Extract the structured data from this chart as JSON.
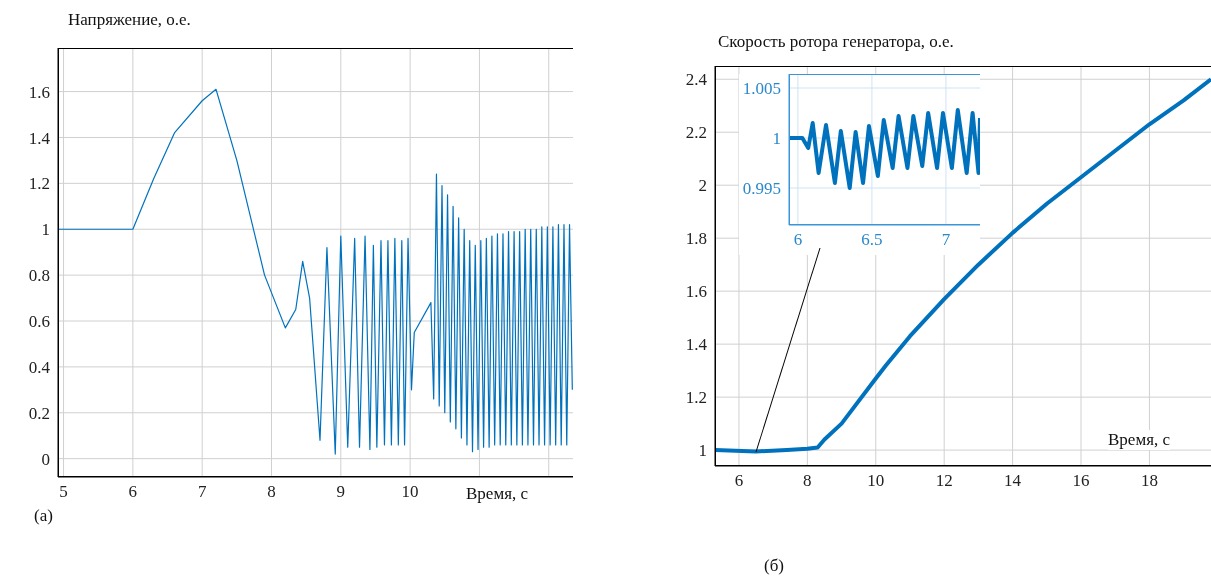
{
  "chart_data": [
    {
      "type": "line",
      "ylabel": "Напряжение, о.е.",
      "xlabel": "Время, с",
      "annotations": [
        "(а)"
      ],
      "color": "#0072bd",
      "grid": true,
      "xlim": [
        4.92,
        12.35
      ],
      "ylim": [
        -0.08,
        1.79
      ],
      "xticks": [
        5,
        6,
        7,
        8,
        9,
        10,
        {
          "value": 11,
          "label": null
        },
        {
          "value": 12,
          "label": null
        }
      ],
      "yticks": [
        0,
        0.2,
        0.4,
        0.6,
        0.8,
        1,
        1.2,
        1.4,
        1.6
      ],
      "x": [
        4.92,
        6.0,
        6.3,
        6.6,
        7.0,
        7.2,
        7.5,
        7.9,
        8.2,
        8.35,
        8.45,
        8.55,
        8.7,
        8.8,
        8.92,
        9.0,
        9.1,
        9.2,
        9.27,
        9.35,
        9.42,
        9.47,
        9.52,
        9.58,
        9.63,
        9.68,
        9.73,
        9.78,
        9.83,
        9.88,
        9.92,
        9.97,
        10.02,
        10.06,
        10.3,
        10.34,
        10.38,
        10.42,
        10.46,
        10.5,
        10.54,
        10.58,
        10.62,
        10.66,
        10.7,
        10.74,
        10.78,
        10.82,
        10.86,
        10.9,
        10.94,
        10.98,
        11.02,
        11.06,
        11.1,
        11.14,
        11.18,
        11.22,
        11.26,
        11.3,
        11.34,
        11.38,
        11.42,
        11.46,
        11.5,
        11.54,
        11.58,
        11.62,
        11.66,
        11.7,
        11.74,
        11.78,
        11.82,
        11.86,
        11.9,
        11.94,
        11.98,
        12.02,
        12.06,
        12.1,
        12.14,
        12.18,
        12.22,
        12.26,
        12.3,
        12.34
      ],
      "values": [
        1,
        1,
        1.22,
        1.42,
        1.56,
        1.61,
        1.3,
        0.8,
        0.57,
        0.65,
        0.86,
        0.7,
        0.08,
        0.92,
        0.02,
        0.97,
        0.05,
        0.96,
        0.05,
        0.97,
        0.04,
        0.93,
        0.05,
        0.95,
        0.06,
        0.95,
        0.06,
        0.96,
        0.06,
        0.95,
        0.06,
        0.96,
        0.3,
        0.55,
        0.68,
        0.26,
        1.24,
        0.23,
        1.19,
        0.2,
        1.15,
        0.16,
        1.1,
        0.13,
        1.05,
        0.09,
        1,
        0.06,
        0.95,
        0.03,
        0.93,
        0.04,
        0.95,
        0.05,
        0.96,
        0.05,
        0.97,
        0.06,
        0.98,
        0.06,
        0.98,
        0.06,
        0.99,
        0.06,
        0.99,
        0.06,
        0.99,
        0.06,
        1,
        0.06,
        1,
        0.06,
        1,
        0.06,
        1.01,
        0.06,
        1.01,
        0.06,
        1.01,
        0.06,
        1.02,
        0.06,
        1.02,
        0.06,
        1.02,
        0.3
      ]
    },
    {
      "type": "line",
      "ylabel": "Скорость ротора генератора, о.е.",
      "xlabel": "Время, с",
      "annotations": [
        "(б)"
      ],
      "color": "#0072bd",
      "grid": true,
      "xlim": [
        5.3,
        19.8
      ],
      "ylim": [
        0.94,
        2.45
      ],
      "xticks": [
        6,
        8,
        10,
        12,
        14,
        16,
        18
      ],
      "yticks": [
        1,
        1.2,
        1.4,
        1.6,
        1.8,
        2,
        2.2,
        2.4
      ],
      "x": [
        5.3,
        6.5,
        7.4,
        8.0,
        8.3,
        8.5,
        9.0,
        10.0,
        10.3,
        11,
        12,
        13,
        14,
        15,
        16,
        17,
        18,
        19,
        19.8
      ],
      "values": [
        1,
        0.995,
        1.0,
        1.005,
        1.01,
        1.04,
        1.1,
        1.27,
        1.32,
        1.43,
        1.57,
        1.7,
        1.82,
        1.93,
        2.03,
        2.13,
        2.23,
        2.32,
        2.4
      ]
    },
    {
      "type": "line",
      "color": "#0072bd",
      "grid": true,
      "xlim": [
        5.94,
        7.23
      ],
      "ylim": [
        0.9913,
        1.0064
      ],
      "xticks": [
        6,
        6.5,
        7
      ],
      "yticks": [
        0.995,
        1,
        1.005
      ],
      "x": [
        5.94,
        6.03,
        6.07,
        6.1,
        6.14,
        6.19,
        6.25,
        6.29,
        6.35,
        6.39,
        6.44,
        6.48,
        6.54,
        6.58,
        6.64,
        6.68,
        6.74,
        6.78,
        6.84,
        6.88,
        6.94,
        6.98,
        7.04,
        7.08,
        7.14,
        7.18,
        7.22,
        7.23
      ],
      "values": [
        1,
        1,
        0.999,
        1.0015,
        0.9965,
        1.0013,
        0.9955,
        1.0007,
        0.995,
        1.0006,
        0.9955,
        1.0012,
        0.9962,
        1.0018,
        0.997,
        1.0022,
        0.997,
        1.0022,
        0.9972,
        1.0025,
        0.997,
        1.0025,
        0.997,
        1.0028,
        0.9965,
        1.0025,
        0.9965,
        1.002
      ]
    }
  ]
}
